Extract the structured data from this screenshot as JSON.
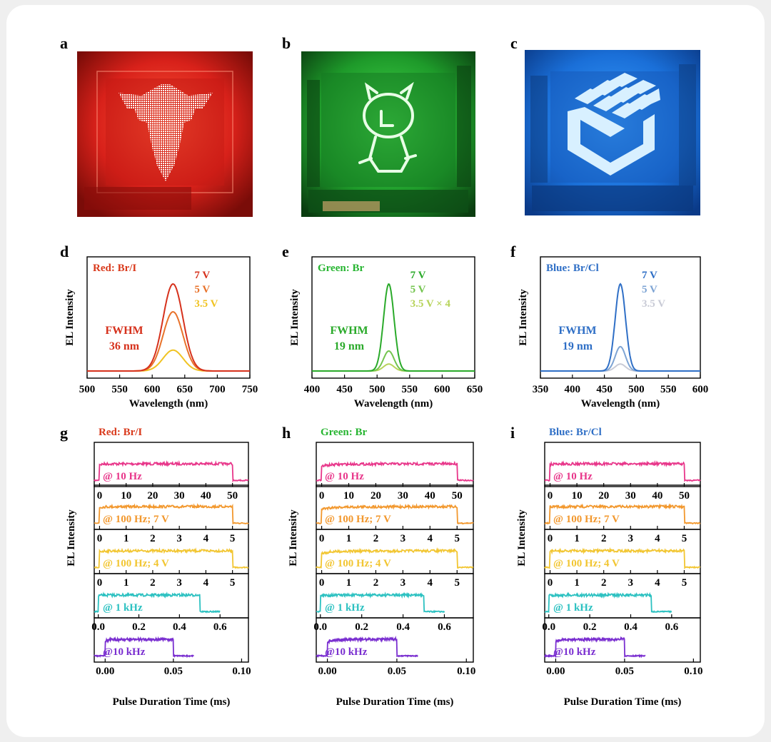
{
  "panel_letters": {
    "a": "a",
    "b": "b",
    "c": "c",
    "d": "d",
    "e": "e",
    "f": "f",
    "g": "g",
    "h": "h",
    "i": "i"
  },
  "photos": [
    {
      "letter": "a",
      "depicts": "red LED display showing phoenix emblem",
      "color": "#e0221c"
    },
    {
      "letter": "b",
      "depicts": "green LED display showing cartoon character",
      "color": "#2fd23a"
    },
    {
      "letter": "c",
      "depicts": "blue LED display showing cube logo",
      "color": "#1e7cf0"
    }
  ],
  "chart_data": [
    {
      "type": "line",
      "panel": "d",
      "title": "Red: Br/I",
      "title_color": "#d93a1c",
      "xlabel": "Wavelength (nm)",
      "ylabel": "EL Intensity",
      "xlim": [
        500,
        750
      ],
      "xticks": [
        "500",
        "550",
        "600",
        "650",
        "700",
        "750"
      ],
      "ylim": [
        0,
        1
      ],
      "peak_nm": 632,
      "fwhm_nm": 36,
      "series": [
        {
          "name": "7 V",
          "color": "#d6311c",
          "peak": 1.0
        },
        {
          "name": "5 V",
          "color": "#e8722a",
          "peak": 0.68
        },
        {
          "name": "3.5 V",
          "color": "#f0c322",
          "peak": 0.24
        }
      ],
      "annotation": [
        "FWHM",
        "36 nm"
      ]
    },
    {
      "type": "line",
      "panel": "e",
      "title": "Green: Br",
      "title_color": "#27b531",
      "xlabel": "Wavelength (nm)",
      "ylabel": "EL Intensity",
      "xlim": [
        400,
        650
      ],
      "xticks": [
        "400",
        "450",
        "500",
        "550",
        "600",
        "650"
      ],
      "ylim": [
        0,
        1
      ],
      "peak_nm": 518,
      "fwhm_nm": 19,
      "series": [
        {
          "name": "7 V",
          "color": "#2aaa2a",
          "peak": 1.0
        },
        {
          "name": "5 V",
          "color": "#73c44e",
          "peak": 0.23
        },
        {
          "name": "3.5 V × 4",
          "color": "#b7d35a",
          "peak": 0.08
        }
      ],
      "annotation": [
        "FWHM",
        "19 nm"
      ]
    },
    {
      "type": "line",
      "panel": "f",
      "title": "Blue: Br/Cl",
      "title_color": "#2f6fc6",
      "xlabel": "Wavelength (nm)",
      "ylabel": "EL Intensity",
      "xlim": [
        350,
        600
      ],
      "xticks": [
        "350",
        "400",
        "450",
        "500",
        "550",
        "600"
      ],
      "ylim": [
        0,
        1
      ],
      "peak_nm": 475,
      "fwhm_nm": 19,
      "series": [
        {
          "name": "7 V",
          "color": "#2f6fc6",
          "peak": 1.0
        },
        {
          "name": "5 V",
          "color": "#7ea4d4",
          "peak": 0.28
        },
        {
          "name": "3.5 V",
          "color": "#c9cbd6",
          "peak": 0.08
        }
      ],
      "annotation": [
        "FWHM",
        "19 nm"
      ]
    },
    {
      "type": "line",
      "panel": "g",
      "title": "Red: Br/I",
      "title_color": "#d93a1c",
      "xlabel": "Pulse Duration Time (ms)",
      "ylabel": "EL Intensity",
      "subplots": [
        {
          "label": "@ 10 Hz",
          "color": "#e8368a",
          "xlim": [
            -2,
            56
          ],
          "on": [
            0,
            50
          ],
          "xticks": [
            0,
            10,
            20,
            30,
            40,
            50
          ],
          "tick_labels": [
            "0",
            "10",
            "20",
            "30",
            "40",
            "50"
          ],
          "rise": 0.1
        },
        {
          "label": "@ 100 Hz; 7 V",
          "color": "#f2982e",
          "xlim": [
            -0.2,
            5.6
          ],
          "on": [
            0,
            5
          ],
          "xticks": [
            0,
            1,
            2,
            3,
            4,
            5
          ],
          "tick_labels": [
            "0",
            "1",
            "2",
            "3",
            "4",
            "5"
          ],
          "rise": 0.1
        },
        {
          "label": "@ 100 Hz; 4 V",
          "color": "#f2c632",
          "xlim": [
            -0.2,
            5.6
          ],
          "on": [
            0,
            5
          ],
          "xticks": [
            0,
            1,
            2,
            3,
            4,
            5
          ],
          "tick_labels": [
            "0",
            "1",
            "2",
            "3",
            "4",
            "5"
          ],
          "rise": 0.1
        },
        {
          "label": "@ 1 kHz",
          "color": "#2cc1c1",
          "xlim": [
            -0.02,
            0.74
          ],
          "on": [
            0,
            0.5
          ],
          "off_end": 0.6,
          "xticks": [
            0,
            0.2,
            0.4,
            0.6
          ],
          "tick_labels": [
            "0.0",
            "0.2",
            "0.4",
            "0.6"
          ],
          "rise": 0.1
        },
        {
          "label": "@10 kHz",
          "color": "#7a2fd0",
          "xlim": [
            -0.008,
            0.105
          ],
          "on": [
            0,
            0.05
          ],
          "off_end": 0.065,
          "xticks": [
            0,
            0.05,
            0.1
          ],
          "tick_labels": [
            "0.00",
            "0.05",
            "0.10"
          ],
          "rise": 0.25
        }
      ]
    },
    {
      "type": "line",
      "panel": "h",
      "title": "Green: Br",
      "title_color": "#27b531",
      "xlabel": "Pulse Duration Time (ms)",
      "ylabel": "EL Intensity",
      "subplots": [
        {
          "label": "@ 10 Hz",
          "color": "#e8368a",
          "xlim": [
            -2,
            56
          ],
          "on": [
            0,
            50
          ],
          "xticks": [
            0,
            10,
            20,
            30,
            40,
            50
          ],
          "tick_labels": [
            "0",
            "10",
            "20",
            "30",
            "40",
            "50"
          ],
          "rise": 0.35
        },
        {
          "label": "@ 100 Hz; 7 V",
          "color": "#f2982e",
          "xlim": [
            -0.2,
            5.6
          ],
          "on": [
            0,
            5
          ],
          "xticks": [
            0,
            1,
            2,
            3,
            4,
            5
          ],
          "tick_labels": [
            "0",
            "1",
            "2",
            "3",
            "4",
            "5"
          ],
          "rise": 0.35
        },
        {
          "label": "@ 100 Hz; 4 V",
          "color": "#f2c632",
          "xlim": [
            -0.2,
            5.6
          ],
          "on": [
            0,
            5
          ],
          "xticks": [
            0,
            1,
            2,
            3,
            4,
            5
          ],
          "tick_labels": [
            "0",
            "1",
            "2",
            "3",
            "4",
            "5"
          ],
          "rise": 0.35
        },
        {
          "label": "@ 1 kHz",
          "color": "#2cc1c1",
          "xlim": [
            -0.02,
            0.74
          ],
          "on": [
            0,
            0.5
          ],
          "off_end": 0.6,
          "xticks": [
            0,
            0.2,
            0.4,
            0.6
          ],
          "tick_labels": [
            "0.0",
            "0.2",
            "0.4",
            "0.6"
          ],
          "rise": 0.15
        },
        {
          "label": "@10 kHz",
          "color": "#7a2fd0",
          "xlim": [
            -0.008,
            0.105
          ],
          "on": [
            0,
            0.05
          ],
          "off_end": 0.065,
          "xticks": [
            0,
            0.05,
            0.1
          ],
          "tick_labels": [
            "0.00",
            "0.05",
            "0.10"
          ],
          "rise": 0.35
        }
      ]
    },
    {
      "type": "line",
      "panel": "i",
      "title": "Blue: Br/Cl",
      "title_color": "#2f6fc6",
      "xlabel": "Pulse Duration Time (ms)",
      "ylabel": "EL Intensity",
      "subplots": [
        {
          "label": "@ 10 Hz",
          "color": "#e8368a",
          "xlim": [
            -2,
            56
          ],
          "on": [
            0,
            50
          ],
          "xticks": [
            0,
            10,
            20,
            30,
            40,
            50
          ],
          "tick_labels": [
            "0",
            "10",
            "20",
            "30",
            "40",
            "50"
          ],
          "rise": 0.1
        },
        {
          "label": "@ 100 Hz; 7 V",
          "color": "#f2982e",
          "xlim": [
            -0.2,
            5.6
          ],
          "on": [
            0,
            5
          ],
          "xticks": [
            0,
            1,
            2,
            3,
            4,
            5
          ],
          "tick_labels": [
            "0",
            "1",
            "2",
            "3",
            "4",
            "5"
          ],
          "rise": 0.1
        },
        {
          "label": "@ 100 Hz; 4 V",
          "color": "#f2c632",
          "xlim": [
            -0.2,
            5.6
          ],
          "on": [
            0,
            5
          ],
          "xticks": [
            0,
            1,
            2,
            3,
            4,
            5
          ],
          "tick_labels": [
            "0",
            "1",
            "2",
            "3",
            "4",
            "5"
          ],
          "rise": 0.1
        },
        {
          "label": "@ 1 kHz",
          "color": "#2cc1c1",
          "xlim": [
            -0.02,
            0.74
          ],
          "on": [
            0,
            0.5
          ],
          "off_end": 0.6,
          "xticks": [
            0,
            0.2,
            0.4,
            0.6
          ],
          "tick_labels": [
            "0.0",
            "0.2",
            "0.4",
            "0.6"
          ],
          "rise": 0.1
        },
        {
          "label": "@10 kHz",
          "color": "#7a2fd0",
          "xlim": [
            -0.008,
            0.105
          ],
          "on": [
            0,
            0.05
          ],
          "off_end": 0.065,
          "xticks": [
            0,
            0.05,
            0.1
          ],
          "tick_labels": [
            "0.00",
            "0.05",
            "0.10"
          ],
          "rise": 0.3
        }
      ]
    }
  ]
}
